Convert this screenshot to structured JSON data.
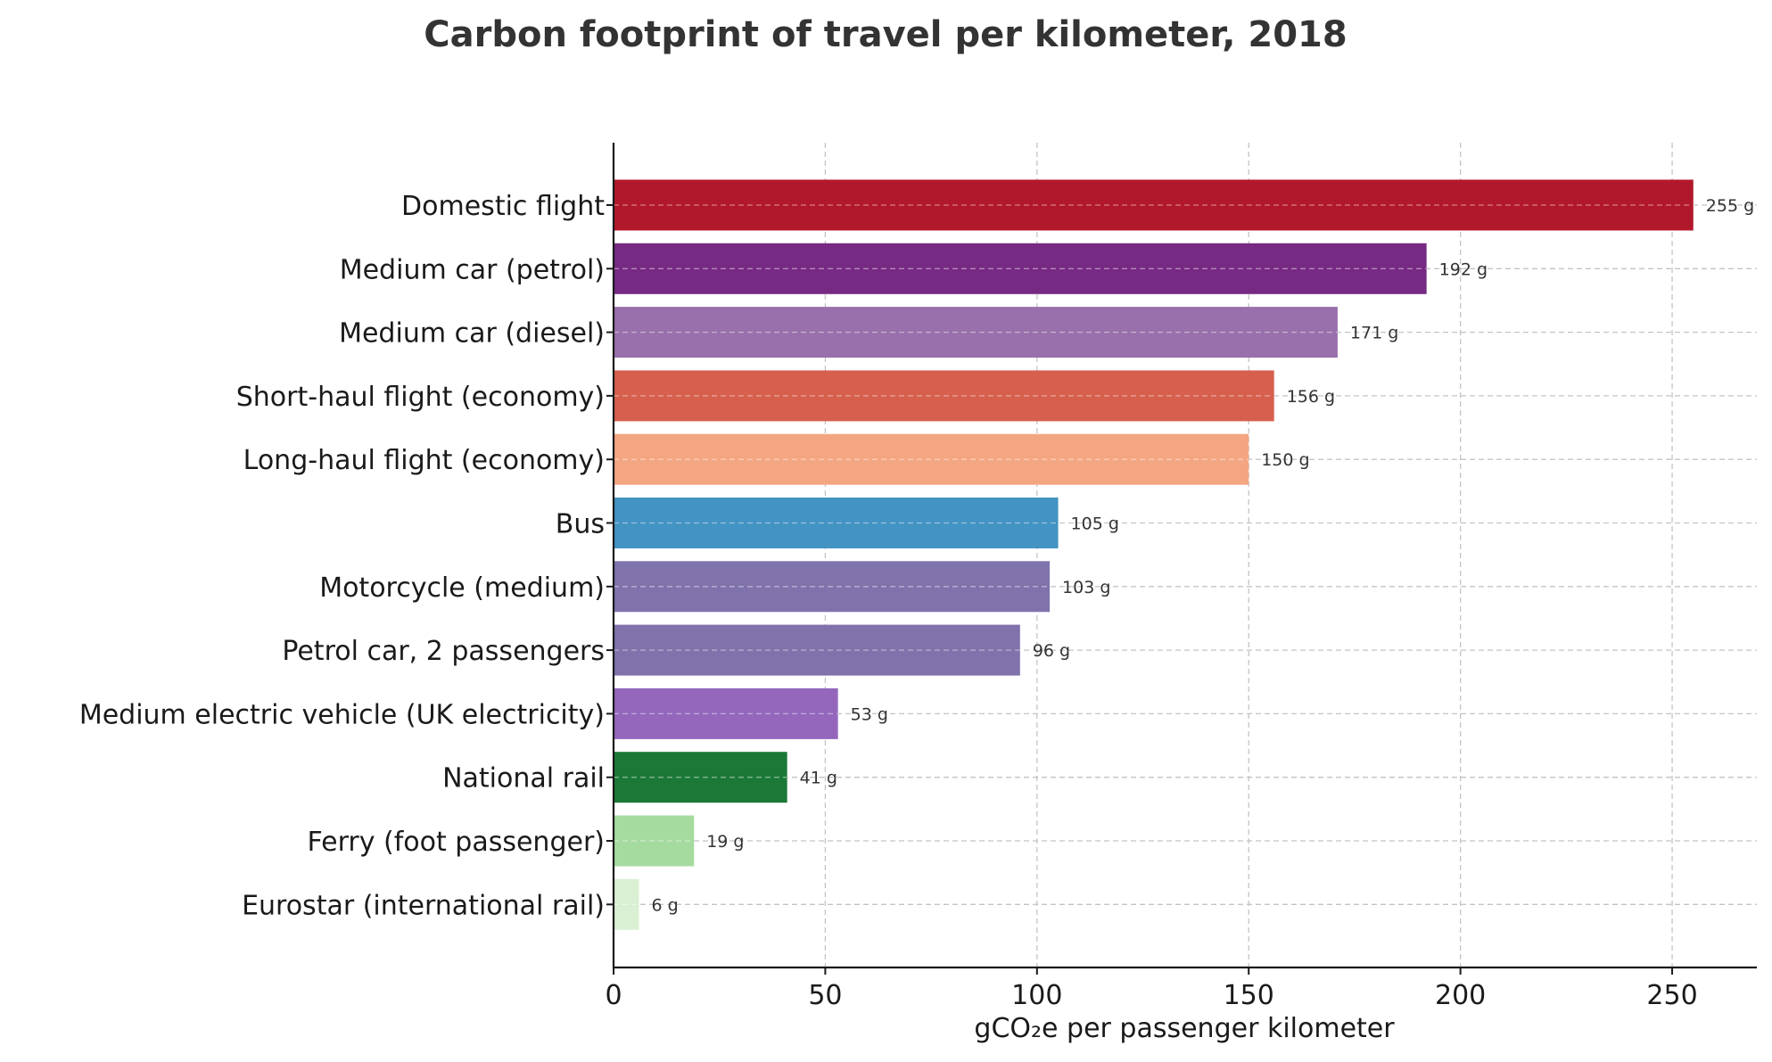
{
  "chart_data": {
    "type": "bar",
    "orientation": "horizontal",
    "title": "Carbon footprint of travel per kilometer, 2018",
    "xlabel": "gCO₂e per passenger kilometer",
    "ylabel": "",
    "xlim": [
      0,
      270
    ],
    "xticks": [
      0,
      50,
      100,
      150,
      200,
      250
    ],
    "grid": true,
    "value_suffix": " g",
    "categories": [
      "Domestic flight",
      "Medium car (petrol)",
      "Medium car (diesel)",
      "Short-haul flight (economy)",
      "Long-haul flight (economy)",
      "Bus",
      "Motorcycle (medium)",
      "Petrol car, 2 passengers",
      "Medium electric vehicle (UK electricity)",
      "National rail",
      "Ferry (foot passenger)",
      "Eurostar (international rail)"
    ],
    "values": [
      255,
      192,
      171,
      156,
      150,
      105,
      103,
      96,
      53,
      41,
      19,
      6
    ],
    "colors": [
      "#b2182b",
      "#762a83",
      "#9970ab",
      "#d6604d",
      "#f4a582",
      "#4393c3",
      "#8073ac",
      "#8073ac",
      "#9467bd",
      "#1b7837",
      "#a6dba0",
      "#d9f0d3"
    ]
  }
}
